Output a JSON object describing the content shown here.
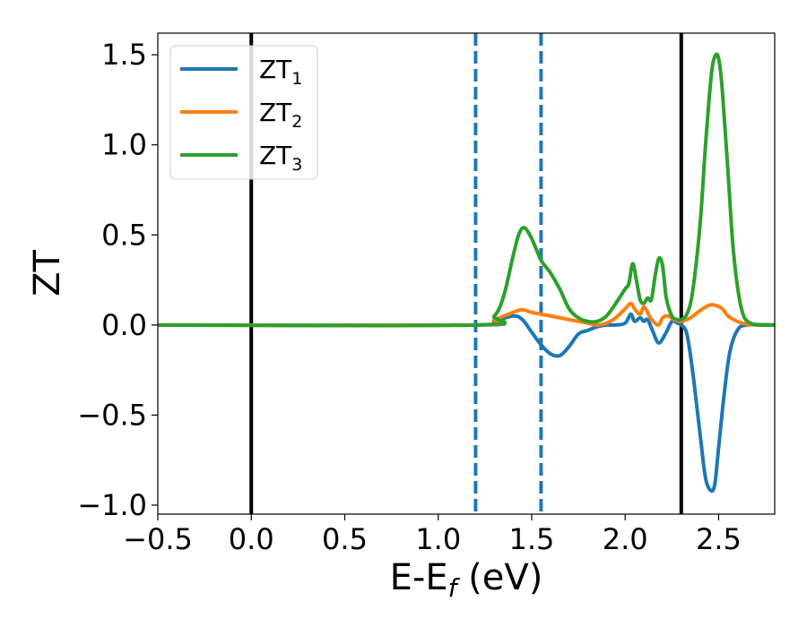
{
  "chart_data": {
    "type": "line",
    "xlabel": "E-E",
    "xlabel_sub": "f",
    "xlabel_unit": " (eV)",
    "ylabel": "ZT",
    "xlim": [
      -0.5,
      2.8
    ],
    "ylim": [
      -1.05,
      1.62
    ],
    "x_ticks": [
      -0.5,
      0.0,
      0.5,
      1.0,
      1.5,
      2.0,
      2.5
    ],
    "x_tick_labels": [
      "−0.5",
      "0.0",
      "0.5",
      "1.0",
      "1.5",
      "2.0",
      "2.5"
    ],
    "y_ticks": [
      -1.0,
      -0.5,
      0.0,
      0.5,
      1.0,
      1.5
    ],
    "y_tick_labels": [
      "−1.0",
      "−0.5",
      "0.0",
      "0.5",
      "1.0",
      "1.5"
    ],
    "grid": false,
    "legend_position": "top-left",
    "vlines": [
      {
        "x": 0.0,
        "style": "solid",
        "color": "#000000"
      },
      {
        "x": 1.2,
        "style": "dashed",
        "color": "#1f77b4"
      },
      {
        "x": 1.55,
        "style": "dashed",
        "color": "#1f77b4"
      },
      {
        "x": 2.3,
        "style": "solid",
        "color": "#000000"
      }
    ],
    "series": [
      {
        "name": "ZT",
        "name_sub": "1",
        "color": "#1f77b4",
        "x": [
          -0.5,
          1.2,
          1.3,
          1.4,
          1.45,
          1.5,
          1.55,
          1.6,
          1.65,
          1.7,
          1.75,
          1.8,
          1.85,
          1.9,
          1.95,
          2.0,
          2.03,
          2.05,
          2.08,
          2.1,
          2.12,
          2.15,
          2.18,
          2.22,
          2.25,
          2.28,
          2.3,
          2.33,
          2.36,
          2.4,
          2.43,
          2.46,
          2.48,
          2.5,
          2.53,
          2.56,
          2.6,
          2.65,
          2.8
        ],
        "y": [
          0.0,
          0.0,
          0.02,
          0.05,
          0.03,
          -0.04,
          -0.11,
          -0.16,
          -0.17,
          -0.12,
          -0.05,
          -0.03,
          -0.01,
          0.0,
          0.0,
          0.01,
          0.06,
          0.02,
          0.04,
          0.02,
          0.03,
          -0.04,
          -0.1,
          -0.04,
          0.02,
          0.01,
          0.0,
          -0.05,
          -0.25,
          -0.6,
          -0.85,
          -0.92,
          -0.88,
          -0.68,
          -0.38,
          -0.15,
          -0.03,
          0.0,
          0.0
        ]
      },
      {
        "name": "ZT",
        "name_sub": "2",
        "color": "#ff7f0e",
        "x": [
          -0.5,
          1.2,
          1.3,
          1.4,
          1.45,
          1.5,
          1.6,
          1.7,
          1.8,
          1.85,
          1.9,
          1.95,
          2.0,
          2.03,
          2.05,
          2.08,
          2.1,
          2.13,
          2.15,
          2.18,
          2.2,
          2.23,
          2.26,
          2.3,
          2.35,
          2.4,
          2.45,
          2.48,
          2.52,
          2.55,
          2.6,
          2.65,
          2.7,
          2.8
        ],
        "y": [
          0.0,
          0.0,
          0.03,
          0.07,
          0.085,
          0.07,
          0.05,
          0.03,
          0.01,
          0.0,
          0.01,
          0.04,
          0.09,
          0.12,
          0.09,
          0.06,
          0.1,
          0.05,
          0.02,
          0.0,
          0.04,
          0.05,
          0.03,
          0.02,
          0.04,
          0.08,
          0.11,
          0.11,
          0.09,
          0.05,
          0.02,
          0.005,
          0.0,
          0.0
        ]
      },
      {
        "name": "ZT",
        "name_sub": "3",
        "color": "#2ca02c",
        "x": [
          -0.5,
          1.2,
          1.3,
          1.35,
          1.4,
          1.43,
          1.46,
          1.5,
          1.55,
          1.6,
          1.65,
          1.7,
          1.75,
          1.8,
          1.85,
          1.9,
          1.95,
          2.0,
          2.02,
          2.04,
          2.06,
          2.08,
          2.1,
          2.12,
          2.14,
          2.16,
          2.18,
          2.2,
          2.22,
          2.25,
          2.28,
          2.3,
          2.33,
          2.36,
          2.4,
          2.43,
          2.46,
          2.48,
          2.5,
          2.52,
          2.55,
          2.58,
          2.62,
          2.67,
          2.8
        ],
        "y": [
          0.0,
          0.0,
          0.05,
          0.16,
          0.38,
          0.5,
          0.54,
          0.48,
          0.36,
          0.29,
          0.2,
          0.09,
          0.04,
          0.02,
          0.02,
          0.05,
          0.12,
          0.2,
          0.23,
          0.34,
          0.25,
          0.14,
          0.12,
          0.15,
          0.14,
          0.27,
          0.37,
          0.33,
          0.15,
          0.05,
          0.03,
          0.03,
          0.06,
          0.18,
          0.55,
          1.0,
          1.38,
          1.49,
          1.48,
          1.3,
          0.85,
          0.4,
          0.1,
          0.01,
          0.0
        ]
      }
    ]
  }
}
